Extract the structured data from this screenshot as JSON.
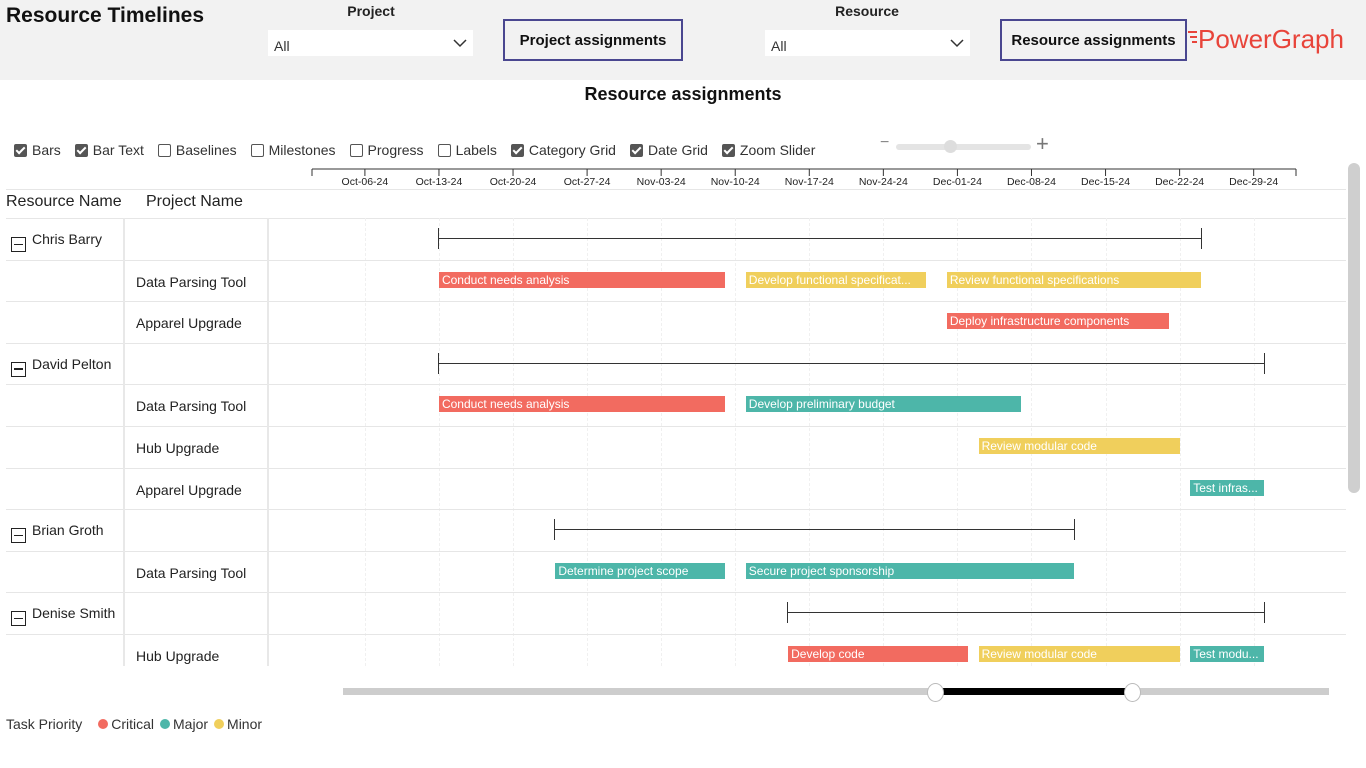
{
  "app_title": "Resource Timelines",
  "filters": {
    "project": {
      "label": "Project",
      "value": "All"
    },
    "resource": {
      "label": "Resource",
      "value": "All"
    }
  },
  "nav": {
    "project_assignments": "Project assignments",
    "resource_assignments": "Resource assignments"
  },
  "logo": {
    "prefix": "P",
    "text": "owerGraph"
  },
  "visual_title": "Resource assignments",
  "toolbar": [
    {
      "label": "Bars",
      "checked": true
    },
    {
      "label": "Bar Text",
      "checked": true
    },
    {
      "label": "Baselines",
      "checked": false
    },
    {
      "label": "Milestones",
      "checked": false
    },
    {
      "label": "Progress",
      "checked": false
    },
    {
      "label": "Labels",
      "checked": false
    },
    {
      "label": "Category Grid",
      "checked": true
    },
    {
      "label": "Date Grid",
      "checked": true
    },
    {
      "label": "Zoom Slider",
      "checked": true
    }
  ],
  "zoom": {
    "minus": "−",
    "plus": "+",
    "level": 0.4
  },
  "columns": {
    "resource_name": "Resource Name",
    "project_name": "Project Name"
  },
  "axis_dates": [
    "Oct-06-24",
    "Oct-13-24",
    "Oct-20-24",
    "Oct-27-24",
    "Nov-03-24",
    "Nov-10-24",
    "Nov-17-24",
    "Nov-24-24",
    "Dec-01-24",
    "Dec-08-24",
    "Dec-15-24",
    "Dec-22-24",
    "Dec-29-24"
  ],
  "priority_colors": {
    "Critical": "#f26b60",
    "Major": "#4db6a9",
    "Minor": "#f0cf5c"
  },
  "rows": [
    {
      "type": "resource",
      "resource": "Chris Barry",
      "span": [
        "2024-10-13",
        "2024-12-24"
      ]
    },
    {
      "type": "project",
      "project": "Data Parsing Tool",
      "tasks": [
        {
          "label": "Conduct needs analysis",
          "priority": "Critical",
          "start": "2024-10-13",
          "end": "2024-11-09"
        },
        {
          "label": "Develop functional specificat...",
          "priority": "Minor",
          "start": "2024-11-11",
          "end": "2024-11-28"
        },
        {
          "label": "Review functional specifications",
          "priority": "Minor",
          "start": "2024-11-30",
          "end": "2024-12-24"
        }
      ]
    },
    {
      "type": "project",
      "project": "Apparel Upgrade",
      "tasks": [
        {
          "label": "Deploy infrastructure components",
          "priority": "Critical",
          "start": "2024-11-30",
          "end": "2024-12-21"
        }
      ]
    },
    {
      "type": "resource",
      "resource": "David Pelton",
      "span": [
        "2024-10-13",
        "2024-12-30"
      ]
    },
    {
      "type": "project",
      "project": "Data Parsing Tool",
      "tasks": [
        {
          "label": "Conduct needs analysis",
          "priority": "Critical",
          "start": "2024-10-13",
          "end": "2024-11-09"
        },
        {
          "label": "Develop preliminary budget",
          "priority": "Major",
          "start": "2024-11-11",
          "end": "2024-12-07"
        }
      ]
    },
    {
      "type": "project",
      "project": "Hub Upgrade",
      "tasks": [
        {
          "label": "Review modular code",
          "priority": "Minor",
          "start": "2024-12-03",
          "end": "2024-12-22"
        }
      ]
    },
    {
      "type": "project",
      "project": "Apparel Upgrade",
      "tasks": [
        {
          "label": "Test infras...",
          "priority": "Major",
          "start": "2024-12-23",
          "end": "2024-12-30"
        }
      ]
    },
    {
      "type": "resource",
      "resource": "Brian Groth",
      "span": [
        "2024-10-24",
        "2024-12-12"
      ]
    },
    {
      "type": "project",
      "project": "Data Parsing Tool",
      "tasks": [
        {
          "label": "Determine project scope",
          "priority": "Major",
          "start": "2024-10-24",
          "end": "2024-11-09"
        },
        {
          "label": "Secure project sponsorship",
          "priority": "Major",
          "start": "2024-11-11",
          "end": "2024-12-12"
        }
      ]
    },
    {
      "type": "resource",
      "resource": "Denise Smith",
      "span": [
        "2024-11-15",
        "2024-12-30"
      ]
    },
    {
      "type": "project",
      "project": "Hub Upgrade",
      "tasks": [
        {
          "label": "Develop code",
          "priority": "Critical",
          "start": "2024-11-15",
          "end": "2024-12-02"
        },
        {
          "label": "Review modular code",
          "priority": "Minor",
          "start": "2024-12-03",
          "end": "2024-12-22"
        },
        {
          "label": "Test modu...",
          "priority": "Major",
          "start": "2024-12-23",
          "end": "2024-12-30"
        }
      ]
    }
  ],
  "range_slider": {
    "start": 0.6,
    "end": 0.8
  },
  "legend": {
    "title": "Task Priority",
    "items": [
      "Critical",
      "Major",
      "Minor"
    ]
  }
}
